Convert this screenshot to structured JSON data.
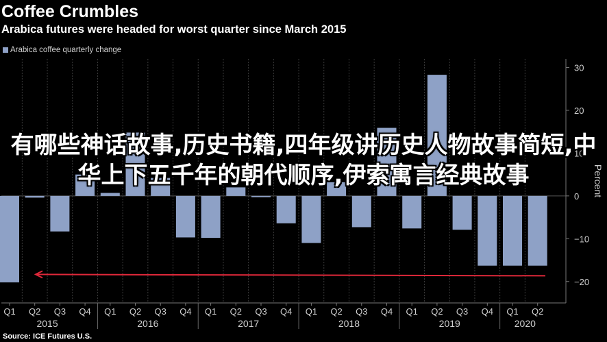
{
  "header": {
    "title": "Coffee Crumbles",
    "subtitle": "Arabica futures were headed for worst quarter since March 2015"
  },
  "legend": {
    "label": "Arabica coffee quarterly change",
    "color": "#8ea1c6"
  },
  "source": "Source: ICE Futures U.S.",
  "overlay_text": "有哪些神话故事,历史书籍,四年级讲历史人物故事简短,中华上下五千年的朝代顺序,伊索寓言经典故事",
  "colors": {
    "background": "#000000",
    "bar": "#8ea1c6",
    "grid": "#3a3a3a",
    "arrow": "#e0283a",
    "axis_text": "#cfcfcf"
  },
  "chart_data": {
    "type": "bar",
    "categories": [
      "Q1",
      "Q2",
      "Q3",
      "Q4",
      "Q1",
      "Q2",
      "Q3",
      "Q4",
      "Q1",
      "Q2",
      "Q3",
      "Q4",
      "Q1",
      "Q2",
      "Q3",
      "Q4",
      "Q1",
      "Q2",
      "Q3",
      "Q4",
      "Q1",
      "Q2"
    ],
    "years": [
      {
        "label": "2015",
        "start": 0
      },
      {
        "label": "2016",
        "start": 4
      },
      {
        "label": "2017",
        "start": 8
      },
      {
        "label": "2018",
        "start": 12
      },
      {
        "label": "2019",
        "start": 16
      },
      {
        "label": "2020",
        "start": 20
      }
    ],
    "series": [
      {
        "name": "Arabica coffee quarterly change",
        "values": [
          -20.2,
          -0.4,
          -8.3,
          5.0,
          0.7,
          14.8,
          4.2,
          -9.7,
          -9.8,
          2.0,
          -0.3,
          -6.4,
          -11.0,
          3.2,
          -7.3,
          15.9,
          -7.6,
          28.3,
          -7.9,
          -16.3,
          -16.3,
          -16.3
        ]
      }
    ],
    "ylabel": "Percent",
    "yticks": [
      30,
      20,
      10,
      0,
      -10,
      -20
    ],
    "ylim": [
      -25,
      32
    ],
    "annotation": "arrow pointing left at the -18.5% level",
    "annotation_level": -18.5,
    "grid": "vertical"
  }
}
